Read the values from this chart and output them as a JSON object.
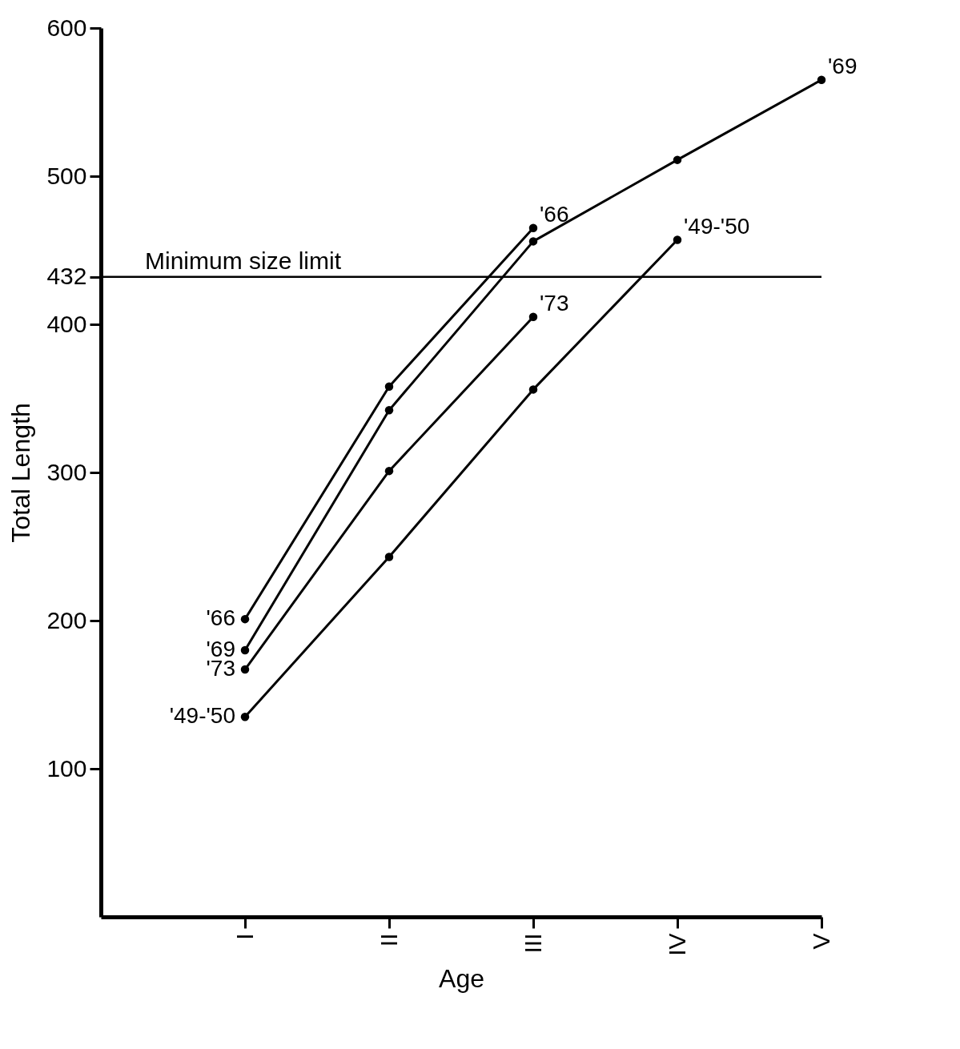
{
  "chart_data": {
    "type": "line",
    "xlabel": "Age",
    "ylabel": "Total Length",
    "categories": [
      "I",
      "II",
      "III",
      "IV",
      "V"
    ],
    "ylim": [
      0,
      600
    ],
    "yticks": [
      100,
      200,
      300,
      400,
      432,
      500,
      600
    ],
    "series": [
      {
        "name": "'66",
        "color": "#000000",
        "values": [
          201,
          358,
          465,
          null,
          null
        ]
      },
      {
        "name": "'69",
        "color": "#000000",
        "values": [
          180,
          342,
          456,
          511,
          565
        ]
      },
      {
        "name": "'73",
        "color": "#000000",
        "values": [
          167,
          301,
          405,
          null,
          null
        ]
      },
      {
        "name": "'49-'50",
        "color": "#000000",
        "values": [
          135,
          243,
          356,
          457,
          null
        ]
      }
    ],
    "ref_lines": [
      {
        "axis": "y",
        "value": 432,
        "label": "Minimum size limit",
        "color": "#000000"
      }
    ],
    "marker": "circle",
    "line_style": "solid",
    "grid": false,
    "legend": false
  }
}
